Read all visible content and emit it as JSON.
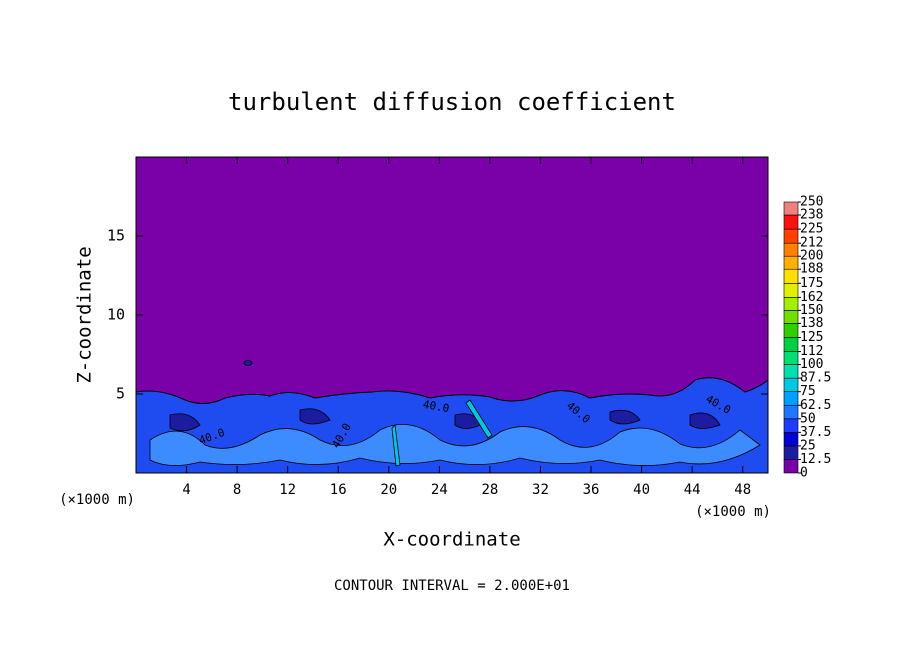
{
  "chart_data": {
    "type": "contour",
    "title": "turbulent diffusion coefficient",
    "x_label": "X-coordinate",
    "y_label": "Z-coordinate",
    "x_unit": "(×1000 m)",
    "x_unit_right": "(×1000 m)",
    "footer": "CONTOUR INTERVAL = 2.000E+01",
    "xlim": [
      0,
      50
    ],
    "ylim": [
      0,
      20
    ],
    "xticks": [
      4,
      8,
      12,
      16,
      20,
      24,
      28,
      32,
      36,
      40,
      44,
      48
    ],
    "yticks": [
      5,
      10,
      15
    ],
    "contour_labels": [
      "40.0",
      "40.0",
      "40.0",
      "40.0",
      "40.0"
    ],
    "colorbar": {
      "levels": [
        0,
        12.5,
        25,
        37.5,
        50,
        62.5,
        75,
        87.5,
        100,
        112,
        125,
        138,
        150,
        162,
        175,
        188,
        200,
        212,
        225,
        238,
        250
      ],
      "colors": [
        "#7a00a8",
        "#1c1ca0",
        "#0000d8",
        "#1e3cff",
        "#1e78ff",
        "#00a0ff",
        "#00c8e0",
        "#00e0b0",
        "#00e070",
        "#00d040",
        "#30d000",
        "#70e000",
        "#a0f000",
        "#e0f000",
        "#ffe000",
        "#ffb000",
        "#ff8000",
        "#ff4000",
        "#ff1010",
        "#f08080"
      ]
    }
  }
}
